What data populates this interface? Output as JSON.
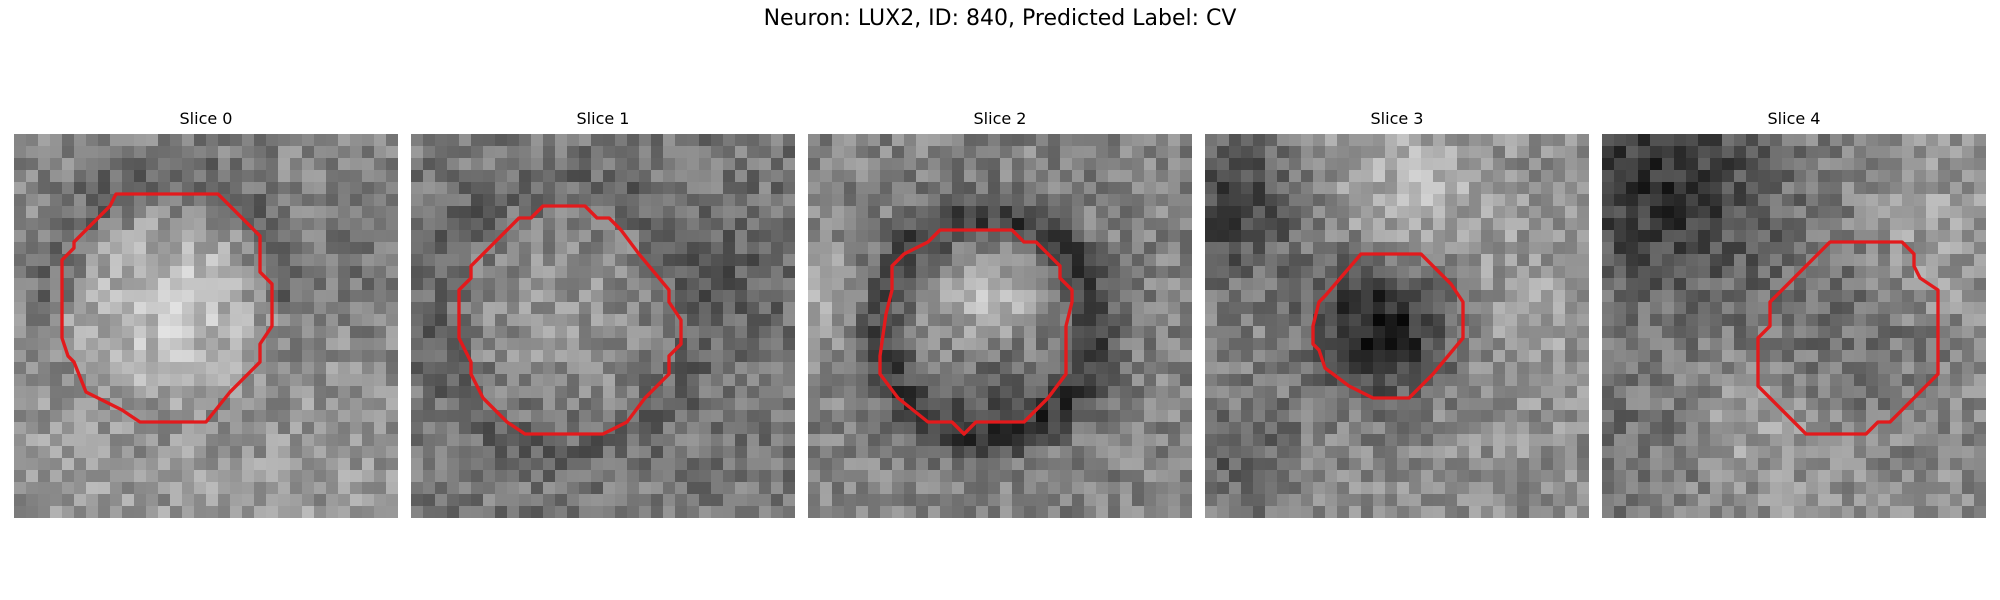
{
  "figure": {
    "title": "Neuron: LUX2, ID: 840, Predicted Label: CV"
  },
  "roi_color": "#e31a1c",
  "slices": [
    {
      "title": "Slice 0"
    },
    {
      "title": "Slice 1"
    },
    {
      "title": "Slice 2"
    },
    {
      "title": "Slice 3"
    },
    {
      "title": "Slice 4"
    }
  ]
}
